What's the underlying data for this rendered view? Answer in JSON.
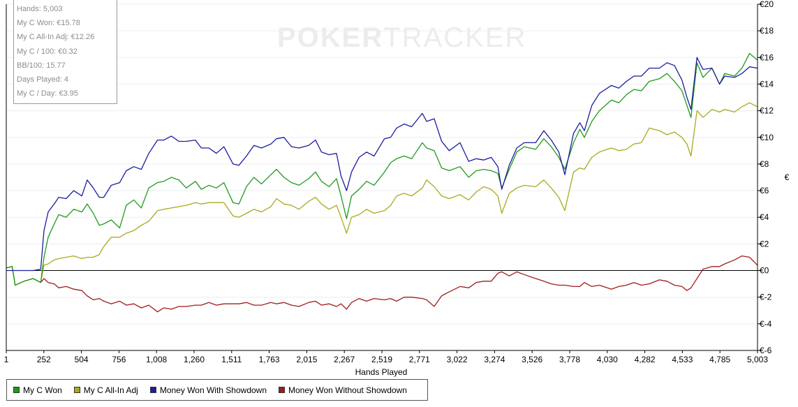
{
  "watermark": {
    "part1": "POKER",
    "part2": "TRACKER"
  },
  "stats": [
    "Hands: 5,003",
    "My C Won: €15.78",
    "My C All-In Adj: €12.26",
    "My C / 100: €0.32",
    "BB/100: 15.77",
    "Days Played: 4",
    "My C / Day: €3.95"
  ],
  "legend": [
    {
      "label": "My C Won",
      "color": "#1f9a1f"
    },
    {
      "label": "My C All-In Adj",
      "color": "#a9a920"
    },
    {
      "label": "Money Won With Showdown",
      "color": "#1c1ca0"
    },
    {
      "label": "Money Won Without Showdown",
      "color": "#a01c1c"
    }
  ],
  "chart_data": {
    "type": "line",
    "xlabel": "Hands Played",
    "ylabel": "€",
    "xlim": [
      1,
      5003
    ],
    "ylim": [
      -6,
      20
    ],
    "x_ticks": [
      "1",
      "252",
      "504",
      "756",
      "1,008",
      "1,260",
      "1,511",
      "1,763",
      "2,015",
      "2,267",
      "2,519",
      "2,771",
      "3,022",
      "3,274",
      "3,526",
      "3,778",
      "4,030",
      "4,282",
      "4,533",
      "4,785",
      "5,003"
    ],
    "y_ticks": [
      {
        "v": 20,
        "label": "€20"
      },
      {
        "v": 18,
        "label": "€18"
      },
      {
        "v": 16,
        "label": "€16"
      },
      {
        "v": 14,
        "label": "€14"
      },
      {
        "v": 12,
        "label": "€12"
      },
      {
        "v": 10,
        "label": "€10"
      },
      {
        "v": 8,
        "label": "€8"
      },
      {
        "v": 6,
        "label": "€6"
      },
      {
        "v": 4,
        "label": "€4"
      },
      {
        "v": 2,
        "label": "€2"
      },
      {
        "v": 0,
        "label": "€0"
      },
      {
        "v": -2,
        "label": "€-2"
      },
      {
        "v": -4,
        "label": "€-4"
      },
      {
        "v": -6,
        "label": "€-6"
      }
    ],
    "series": [
      {
        "name": "My C Won",
        "color": "#1f9a1f",
        "x": [
          1,
          40,
          60,
          120,
          180,
          230,
          252,
          280,
          320,
          350,
          400,
          450,
          504,
          540,
          580,
          620,
          650,
          700,
          756,
          800,
          850,
          900,
          950,
          1008,
          1050,
          1100,
          1150,
          1200,
          1260,
          1300,
          1350,
          1400,
          1450,
          1511,
          1550,
          1600,
          1650,
          1700,
          1763,
          1800,
          1850,
          1900,
          1950,
          2015,
          2060,
          2100,
          2150,
          2200,
          2230,
          2267,
          2300,
          2350,
          2400,
          2450,
          2519,
          2560,
          2600,
          2650,
          2700,
          2771,
          2800,
          2850,
          2900,
          2950,
          3022,
          3080,
          3130,
          3180,
          3230,
          3274,
          3300,
          3350,
          3400,
          3450,
          3526,
          3580,
          3630,
          3680,
          3720,
          3778,
          3820,
          3850,
          3900,
          3950,
          4030,
          4080,
          4130,
          4180,
          4230,
          4282,
          4350,
          4400,
          4450,
          4500,
          4533,
          4560,
          4600,
          4640,
          4700,
          4750,
          4785,
          4850,
          4900,
          4950,
          5003
        ],
        "y": [
          0.2,
          0.3,
          -1.1,
          -0.8,
          -0.6,
          -0.9,
          1.0,
          2.5,
          3.5,
          4.2,
          4.0,
          4.6,
          4.4,
          5.0,
          4.3,
          3.4,
          3.5,
          3.8,
          3.2,
          4.9,
          5.3,
          4.7,
          6.2,
          6.6,
          6.7,
          7.0,
          6.8,
          6.2,
          6.7,
          6.1,
          6.4,
          6.2,
          6.6,
          5.1,
          5.0,
          6.3,
          7.0,
          6.5,
          7.2,
          7.6,
          7.0,
          6.6,
          6.4,
          6.9,
          7.4,
          6.7,
          6.3,
          6.9,
          5.6,
          3.9,
          5.6,
          6.1,
          6.7,
          6.4,
          7.4,
          8.1,
          8.4,
          8.6,
          8.4,
          9.6,
          9.2,
          9.0,
          7.7,
          7.5,
          7.8,
          7.0,
          7.5,
          7.6,
          7.5,
          7.3,
          6.2,
          7.6,
          8.9,
          9.3,
          9.1,
          9.9,
          9.3,
          8.5,
          7.6,
          9.6,
          10.6,
          10.0,
          11.2,
          12.0,
          12.8,
          12.6,
          13.2,
          13.6,
          13.5,
          14.2,
          14.4,
          14.8,
          14.2,
          13.5,
          12.4,
          11.5,
          15.6,
          14.5,
          15.2,
          14.0,
          14.8,
          14.6,
          15.2,
          16.3,
          15.8
        ]
      },
      {
        "name": "My C All-In Adj",
        "color": "#a9a920",
        "x": [
          1,
          40,
          60,
          120,
          180,
          230,
          252,
          280,
          320,
          350,
          400,
          450,
          504,
          540,
          580,
          620,
          650,
          700,
          756,
          800,
          850,
          900,
          950,
          1008,
          1050,
          1100,
          1150,
          1200,
          1260,
          1300,
          1350,
          1400,
          1450,
          1511,
          1550,
          1600,
          1650,
          1700,
          1763,
          1800,
          1850,
          1900,
          1950,
          2015,
          2060,
          2100,
          2150,
          2200,
          2230,
          2267,
          2300,
          2350,
          2400,
          2450,
          2519,
          2560,
          2600,
          2650,
          2700,
          2771,
          2800,
          2850,
          2900,
          2950,
          3022,
          3080,
          3130,
          3180,
          3230,
          3274,
          3300,
          3350,
          3400,
          3450,
          3526,
          3580,
          3630,
          3680,
          3720,
          3778,
          3820,
          3850,
          3900,
          3950,
          4030,
          4080,
          4130,
          4180,
          4230,
          4282,
          4350,
          4400,
          4450,
          4500,
          4533,
          4560,
          4600,
          4640,
          4700,
          4750,
          4785,
          4850,
          4900,
          4950,
          5003
        ],
        "y": [
          0.2,
          0.3,
          -1.1,
          -0.8,
          -0.6,
          -0.9,
          0.4,
          0.5,
          0.8,
          0.9,
          1.0,
          1.1,
          0.9,
          1.0,
          1.0,
          1.2,
          1.8,
          2.5,
          2.5,
          2.8,
          3.0,
          3.4,
          3.7,
          4.5,
          4.6,
          4.7,
          4.8,
          4.9,
          5.1,
          5.0,
          5.1,
          5.1,
          5.1,
          4.1,
          4.0,
          4.3,
          4.6,
          4.4,
          4.8,
          5.4,
          5.0,
          4.9,
          4.6,
          5.2,
          5.5,
          5.0,
          4.6,
          4.9,
          4.0,
          2.8,
          4.0,
          4.2,
          4.6,
          4.3,
          4.5,
          4.9,
          5.6,
          5.8,
          5.6,
          6.2,
          6.8,
          6.3,
          5.6,
          5.4,
          5.7,
          5.3,
          5.9,
          6.3,
          6.1,
          5.6,
          4.3,
          5.8,
          6.2,
          6.4,
          6.3,
          6.8,
          6.2,
          5.5,
          4.5,
          7.4,
          7.7,
          7.6,
          8.5,
          8.9,
          9.2,
          9.0,
          9.1,
          9.5,
          9.6,
          10.7,
          10.5,
          10.2,
          10.4,
          10.0,
          9.5,
          8.6,
          12.0,
          11.5,
          12.1,
          11.9,
          12.1,
          11.9,
          12.3,
          12.6,
          12.3
        ]
      },
      {
        "name": "Money Won With Showdown",
        "color": "#1c1ca0",
        "x": [
          1,
          40,
          60,
          120,
          180,
          230,
          252,
          280,
          320,
          350,
          400,
          450,
          504,
          540,
          580,
          620,
          650,
          700,
          756,
          800,
          850,
          900,
          950,
          1008,
          1050,
          1100,
          1150,
          1200,
          1260,
          1300,
          1350,
          1400,
          1450,
          1511,
          1550,
          1600,
          1650,
          1700,
          1763,
          1800,
          1850,
          1900,
          1950,
          2015,
          2060,
          2100,
          2150,
          2200,
          2230,
          2267,
          2300,
          2350,
          2400,
          2450,
          2519,
          2560,
          2600,
          2650,
          2700,
          2771,
          2800,
          2850,
          2900,
          2950,
          3022,
          3080,
          3130,
          3180,
          3230,
          3274,
          3300,
          3350,
          3400,
          3450,
          3526,
          3580,
          3630,
          3680,
          3720,
          3778,
          3820,
          3850,
          3900,
          3950,
          4030,
          4080,
          4130,
          4180,
          4230,
          4282,
          4350,
          4400,
          4450,
          4500,
          4533,
          4560,
          4600,
          4640,
          4700,
          4750,
          4785,
          4850,
          4900,
          4950,
          5003
        ],
        "y": [
          0.0,
          0.0,
          0.0,
          0.0,
          0.0,
          0.1,
          3.0,
          4.4,
          5.0,
          5.5,
          5.4,
          6.0,
          5.6,
          6.8,
          6.2,
          5.5,
          5.5,
          6.4,
          6.6,
          7.5,
          7.8,
          7.6,
          8.8,
          9.8,
          9.8,
          10.1,
          9.7,
          9.7,
          9.8,
          9.2,
          9.2,
          8.8,
          9.3,
          8.0,
          7.9,
          8.6,
          9.4,
          9.2,
          9.5,
          9.9,
          10.0,
          9.3,
          9.2,
          9.4,
          9.8,
          8.9,
          8.7,
          8.8,
          7.1,
          6.0,
          7.4,
          8.5,
          8.9,
          8.6,
          9.9,
          10.0,
          10.7,
          11.0,
          10.8,
          11.8,
          11.2,
          11.4,
          9.7,
          9.0,
          9.6,
          8.2,
          8.4,
          8.3,
          8.5,
          7.8,
          6.1,
          7.9,
          9.2,
          9.6,
          9.6,
          10.5,
          9.8,
          8.9,
          7.2,
          10.3,
          11.1,
          10.5,
          12.4,
          13.3,
          13.9,
          13.7,
          14.2,
          14.6,
          14.6,
          15.2,
          15.2,
          15.6,
          15.4,
          14.3,
          13.0,
          12.1,
          16.0,
          15.1,
          15.2,
          14.0,
          14.6,
          14.5,
          14.8,
          15.3,
          15.2
        ]
      },
      {
        "name": "Money Won Without Showdown",
        "color": "#a01c1c",
        "x": [
          1,
          40,
          60,
          120,
          180,
          230,
          252,
          280,
          320,
          350,
          400,
          450,
          504,
          540,
          580,
          620,
          650,
          700,
          756,
          800,
          850,
          900,
          950,
          1008,
          1050,
          1100,
          1150,
          1200,
          1260,
          1300,
          1350,
          1400,
          1450,
          1511,
          1550,
          1600,
          1650,
          1700,
          1763,
          1800,
          1850,
          1900,
          1950,
          2015,
          2060,
          2100,
          2150,
          2200,
          2230,
          2267,
          2300,
          2350,
          2400,
          2450,
          2519,
          2560,
          2600,
          2650,
          2700,
          2771,
          2800,
          2850,
          2900,
          2950,
          3022,
          3080,
          3130,
          3180,
          3230,
          3274,
          3300,
          3350,
          3400,
          3450,
          3526,
          3580,
          3630,
          3680,
          3720,
          3778,
          3820,
          3850,
          3900,
          3950,
          4030,
          4080,
          4130,
          4180,
          4230,
          4282,
          4350,
          4400,
          4450,
          4500,
          4533,
          4560,
          4600,
          4640,
          4700,
          4750,
          4785,
          4850,
          4900,
          4950,
          5003
        ],
        "y": [
          0.2,
          0.3,
          -1.1,
          -0.8,
          -0.6,
          -0.9,
          -0.6,
          -0.9,
          -1.0,
          -1.3,
          -1.2,
          -1.4,
          -1.5,
          -1.9,
          -2.2,
          -2.1,
          -2.3,
          -2.5,
          -2.3,
          -2.6,
          -2.5,
          -2.8,
          -2.6,
          -3.1,
          -2.8,
          -2.9,
          -2.7,
          -2.7,
          -2.6,
          -2.6,
          -2.4,
          -2.6,
          -2.5,
          -2.5,
          -2.5,
          -2.4,
          -2.6,
          -2.6,
          -2.4,
          -2.5,
          -2.4,
          -2.6,
          -2.7,
          -2.4,
          -2.3,
          -2.6,
          -2.5,
          -2.7,
          -2.5,
          -2.9,
          -2.4,
          -2.1,
          -2.3,
          -2.1,
          -2.2,
          -2.1,
          -2.3,
          -2.0,
          -2.0,
          -2.1,
          -2.2,
          -2.7,
          -1.9,
          -1.6,
          -1.2,
          -1.3,
          -0.9,
          -0.8,
          -0.8,
          -0.2,
          -0.1,
          -0.4,
          -0.1,
          -0.3,
          -0.6,
          -0.8,
          -1.0,
          -1.1,
          -1.1,
          -1.2,
          -1.2,
          -0.9,
          -1.2,
          -1.1,
          -1.4,
          -1.2,
          -1.1,
          -0.9,
          -1.1,
          -1.0,
          -0.7,
          -0.8,
          -1.1,
          -1.2,
          -1.5,
          -1.3,
          -0.6,
          0.1,
          0.3,
          0.3,
          0.5,
          0.8,
          1.1,
          1.0,
          0.4
        ]
      }
    ]
  }
}
